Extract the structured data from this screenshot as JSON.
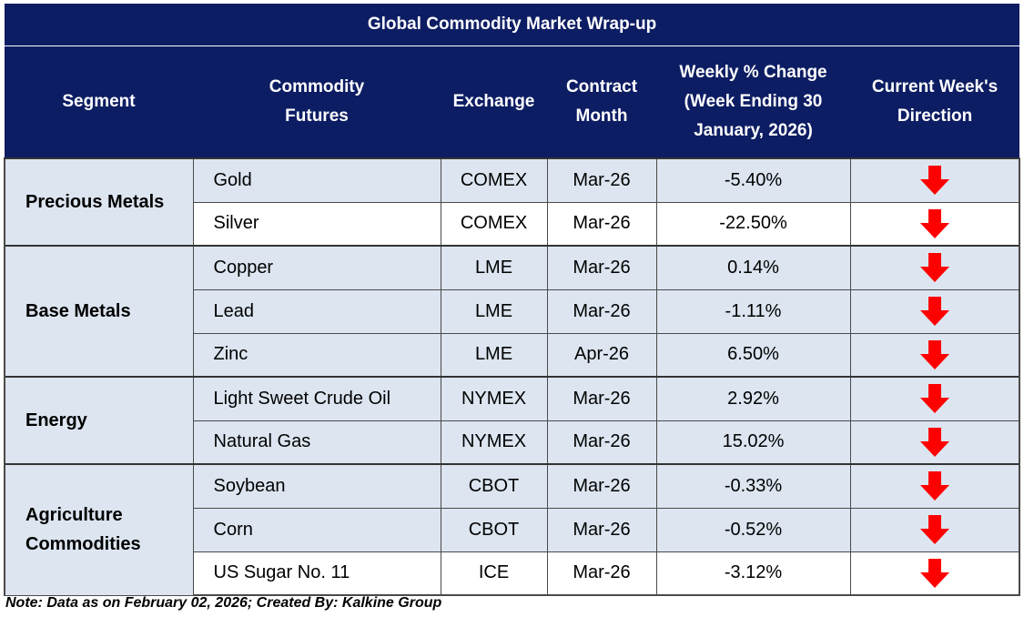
{
  "title": "Global Commodity Market Wrap-up",
  "headers": {
    "segment": "Segment",
    "commodity": "Commodity\nFutures",
    "exchange": "Exchange",
    "contract": "Contract\nMonth",
    "change": "Weekly % Change\n(Week Ending  30\nJanuary, 2026)",
    "direction": "Current Week's\nDirection"
  },
  "segments": {
    "precious": "Precious Metals",
    "base": "Base Metals",
    "energy": "Energy",
    "agri": "Agriculture\nCommodities"
  },
  "rows": [
    {
      "commodity": "Gold",
      "exchange": "COMEX",
      "month": "Mar-26",
      "change": "-5.40%",
      "direction": "down-arrow-icon"
    },
    {
      "commodity": "Silver",
      "exchange": "COMEX",
      "month": "Mar-26",
      "change": "-22.50%",
      "direction": "down-arrow-icon"
    },
    {
      "commodity": "Copper",
      "exchange": "LME",
      "month": "Mar-26",
      "change": "0.14%",
      "direction": "down-arrow-icon"
    },
    {
      "commodity": "Lead",
      "exchange": "LME",
      "month": "Mar-26",
      "change": "-1.11%",
      "direction": "down-arrow-icon"
    },
    {
      "commodity": "Zinc",
      "exchange": "LME",
      "month": "Apr-26",
      "change": "6.50%",
      "direction": "down-arrow-icon"
    },
    {
      "commodity": "Light Sweet Crude Oil",
      "exchange": "NYMEX",
      "month": "Mar-26",
      "change": "2.92%",
      "direction": "down-arrow-icon"
    },
    {
      "commodity": "Natural Gas",
      "exchange": "NYMEX",
      "month": "Mar-26",
      "change": "15.02%",
      "direction": "down-arrow-icon"
    },
    {
      "commodity": "Soybean",
      "exchange": "CBOT",
      "month": "Mar-26",
      "change": "-0.33%",
      "direction": "down-arrow-icon"
    },
    {
      "commodity": "Corn",
      "exchange": "CBOT",
      "month": "Mar-26",
      "change": "-0.52%",
      "direction": "down-arrow-icon"
    },
    {
      "commodity": "US Sugar No. 11",
      "exchange": "ICE",
      "month": "Mar-26",
      "change": "-3.12%",
      "direction": "down-arrow-icon"
    }
  ],
  "note": "Note: Data as on February 02, 2026; Created By: Kalkine Group",
  "colors": {
    "header_bg": "#0d1d63",
    "row_shade": "#dce5f0",
    "arrow": "#ff0000"
  }
}
